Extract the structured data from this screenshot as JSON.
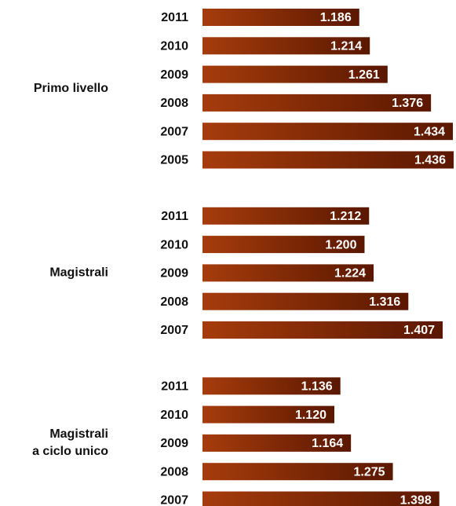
{
  "chart_data": {
    "type": "bar",
    "color": [
      "#a63c0c",
      "#5a1700"
    ],
    "groups": [
      {
        "name": [
          "Primo livello"
        ],
        "categories": [
          "2011",
          "2010",
          "2009",
          "2008",
          "2007",
          "2005"
        ],
        "values": [
          1186,
          1214,
          1261,
          1376,
          1434,
          1436
        ],
        "value_labels": [
          "1.186",
          "1.214",
          "1.261",
          "1.376",
          "1.434",
          "1.436"
        ]
      },
      {
        "name": [
          "Magistrali"
        ],
        "categories": [
          "2011",
          "2010",
          "2009",
          "2008",
          "2007"
        ],
        "values": [
          1212,
          1200,
          1224,
          1316,
          1407
        ],
        "value_labels": [
          "1.212",
          "1.200",
          "1.224",
          "1.316",
          "1.407"
        ]
      },
      {
        "name": [
          "Magistrali",
          "a ciclo unico"
        ],
        "categories": [
          "2011",
          "2010",
          "2009",
          "2008",
          "2007"
        ],
        "values": [
          1136,
          1120,
          1164,
          1275,
          1398
        ],
        "value_labels": [
          "1.136",
          "1.120",
          "1.164",
          "1.275",
          "1.398"
        ]
      }
    ]
  }
}
